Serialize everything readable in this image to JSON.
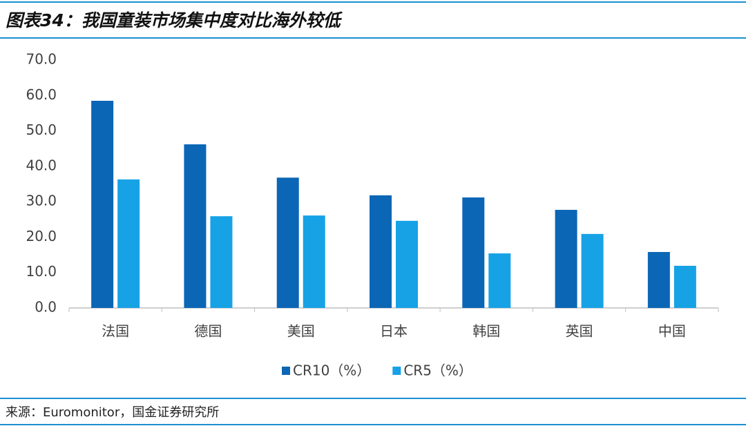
{
  "chart_data": {
    "type": "bar",
    "title": "图表34：我国童装市场集中度对比海外较低",
    "source": "来源：Euromonitor，国金证券研究所",
    "categories": [
      "法国",
      "德国",
      "美国",
      "日本",
      "韩国",
      "英国",
      "中国"
    ],
    "series": [
      {
        "name": "CR10（%）",
        "color": "#0b66b5",
        "values": [
          58.5,
          46.2,
          36.8,
          31.8,
          31.2,
          27.7,
          15.8
        ]
      },
      {
        "name": "CR5（%）",
        "color": "#17a2e6",
        "values": [
          36.3,
          25.9,
          26.1,
          24.6,
          15.4,
          20.9,
          11.9
        ]
      }
    ],
    "ylim": [
      0,
      70
    ],
    "yticks": [
      {
        "value": 0,
        "label": "0.0"
      },
      {
        "value": 10,
        "label": "10.0"
      },
      {
        "value": 20,
        "label": "20.0"
      },
      {
        "value": 30,
        "label": "30.0"
      },
      {
        "value": 40,
        "label": "40.0"
      },
      {
        "value": 50,
        "label": "50.0"
      },
      {
        "value": 60,
        "label": "60.0"
      },
      {
        "value": 70,
        "label": "70.0"
      }
    ],
    "grid": false,
    "legend": "bottom"
  }
}
